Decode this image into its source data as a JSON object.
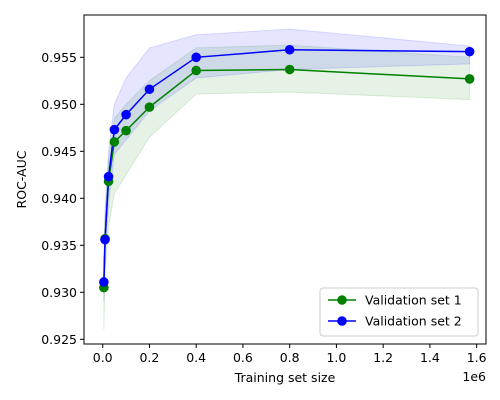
{
  "chart_data": {
    "type": "line",
    "title": "",
    "xlabel": "Training set size",
    "ylabel": "ROC-AUC",
    "x_offset_label": "1e6",
    "xlim": [
      -0.08,
      1.64
    ],
    "ylim": [
      0.9245,
      0.9595
    ],
    "xticks": [
      0.0,
      0.2,
      0.4,
      0.6,
      0.8,
      1.0,
      1.2,
      1.4,
      1.6
    ],
    "xtick_labels": [
      "0.0",
      "0.2",
      "0.4",
      "0.6",
      "0.8",
      "1.0",
      "1.2",
      "1.4",
      "1.6"
    ],
    "yticks": [
      0.925,
      0.93,
      0.935,
      0.94,
      0.945,
      0.95,
      0.955
    ],
    "ytick_labels": [
      "0.925",
      "0.930",
      "0.935",
      "0.940",
      "0.945",
      "0.950",
      "0.955"
    ],
    "grid": false,
    "legend_position": "lower-right",
    "series": [
      {
        "name": "Validation set 1",
        "color": "#008000",
        "x": [
          0.005,
          0.01,
          0.025,
          0.05,
          0.1,
          0.2,
          0.4,
          0.8,
          1.57
        ],
        "y": [
          0.9305,
          0.9357,
          0.9418,
          0.946,
          0.9472,
          0.9497,
          0.9536,
          0.9537,
          0.9527
        ],
        "band_lower": [
          0.926,
          0.932,
          0.937,
          0.9405,
          0.9425,
          0.9465,
          0.9511,
          0.9513,
          0.9505
        ],
        "band_upper": [
          0.933,
          0.9385,
          0.944,
          0.9485,
          0.95,
          0.9525,
          0.956,
          0.9563,
          0.955
        ]
      },
      {
        "name": "Validation set 2",
        "color": "#0000ff",
        "x": [
          0.005,
          0.01,
          0.025,
          0.05,
          0.1,
          0.2,
          0.4,
          0.8,
          1.57
        ],
        "y": [
          0.9311,
          0.9356,
          0.9423,
          0.9473,
          0.9489,
          0.9516,
          0.955,
          0.9558,
          0.9556
        ],
        "band_lower": [
          0.929,
          0.9335,
          0.9395,
          0.9447,
          0.9462,
          0.9493,
          0.9528,
          0.9537,
          0.9543
        ],
        "band_upper": [
          0.9335,
          0.9385,
          0.945,
          0.95,
          0.9528,
          0.956,
          0.9574,
          0.958,
          0.9562
        ]
      }
    ]
  }
}
